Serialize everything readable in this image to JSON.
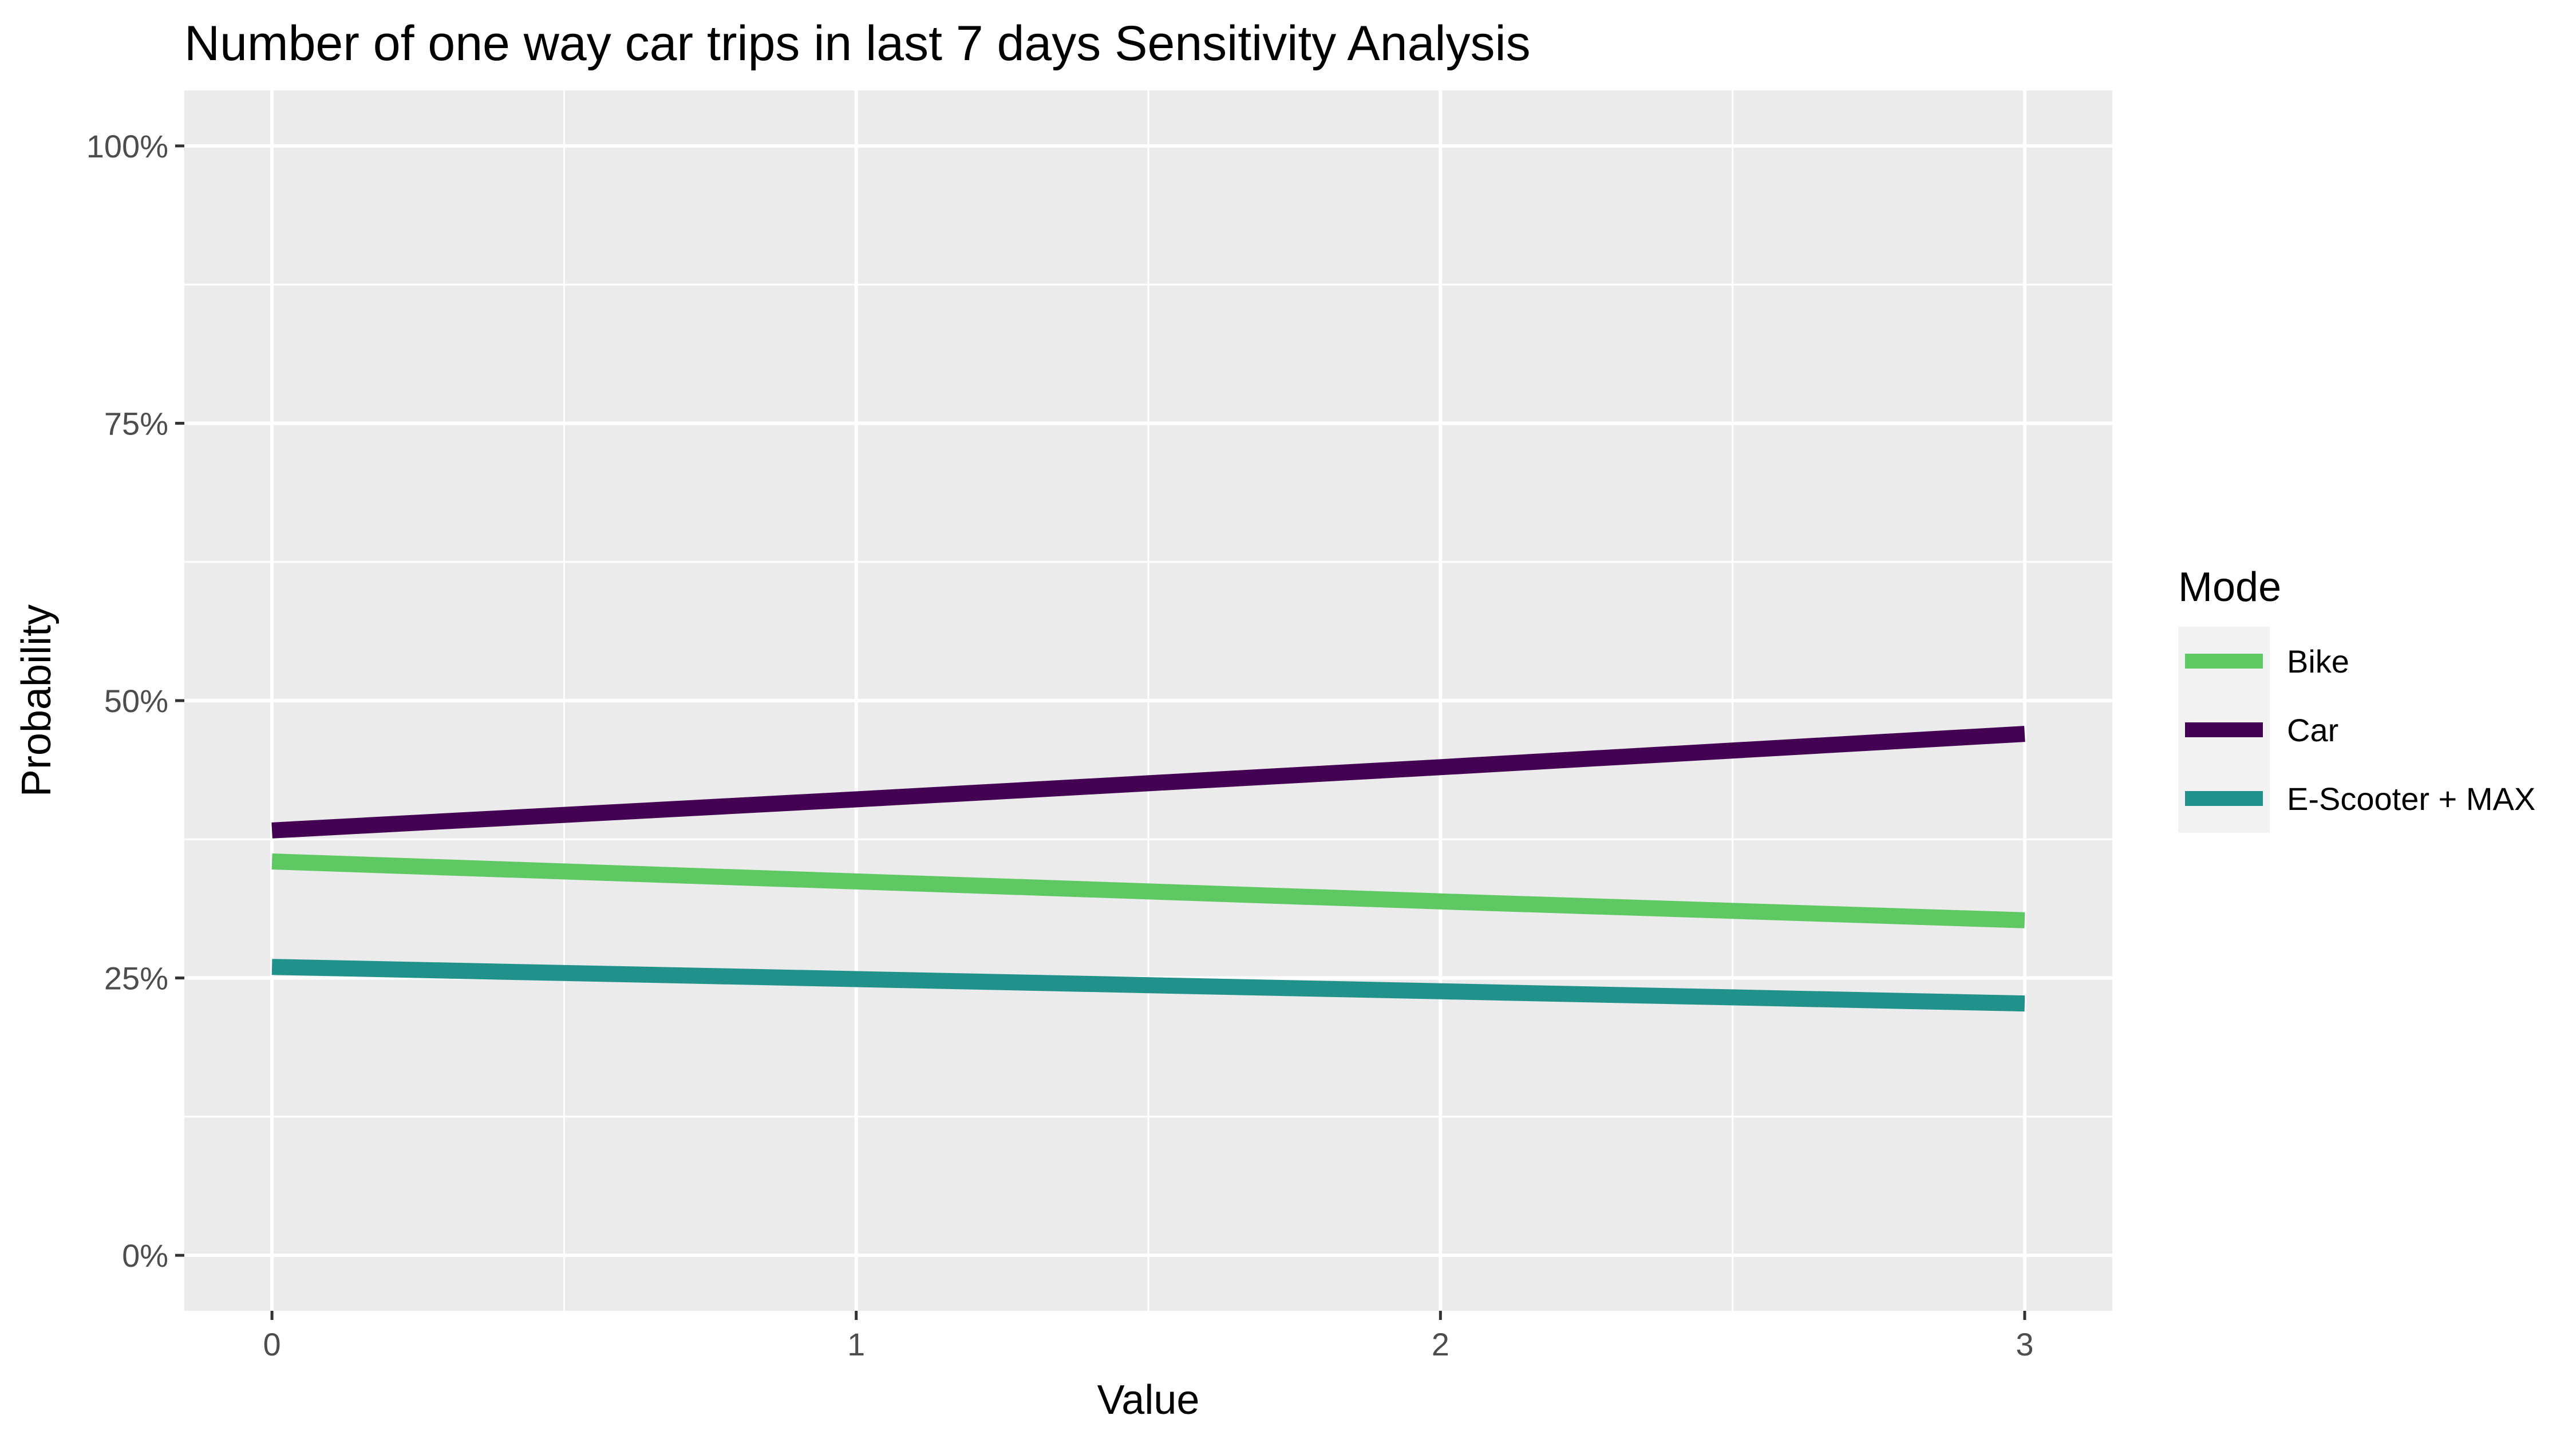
{
  "chart_data": {
    "type": "line",
    "title": "Number of one way car trips in last 7 days Sensitivity Analysis",
    "xlabel": "Value",
    "ylabel": "Probability",
    "xlim": [
      -0.15,
      3.15
    ],
    "ylim": [
      -0.05,
      1.05
    ],
    "x_ticks": [
      {
        "value": 0,
        "label": "0"
      },
      {
        "value": 1,
        "label": "1"
      },
      {
        "value": 2,
        "label": "2"
      },
      {
        "value": 3,
        "label": "3"
      }
    ],
    "y_ticks": [
      {
        "value": 0,
        "label": "0%"
      },
      {
        "value": 0.25,
        "label": "25%"
      },
      {
        "value": 0.5,
        "label": "50%"
      },
      {
        "value": 0.75,
        "label": "75%"
      },
      {
        "value": 1,
        "label": "100%"
      }
    ],
    "x": [
      0,
      1,
      2,
      3
    ],
    "series": [
      {
        "name": "Bike",
        "color": "#5ec962",
        "values": [
          0.355,
          0.337,
          0.319,
          0.302
        ]
      },
      {
        "name": "Car",
        "color": "#440154",
        "values": [
          0.383,
          0.411,
          0.44,
          0.47
        ]
      },
      {
        "name": "E-Scooter + MAX",
        "color": "#21918c",
        "values": [
          0.26,
          0.249,
          0.238,
          0.227
        ]
      }
    ],
    "legend": {
      "title": "Mode",
      "position": "right"
    },
    "grid": true,
    "panel_background": "#ebebeb",
    "grid_color": "#ffffff"
  }
}
